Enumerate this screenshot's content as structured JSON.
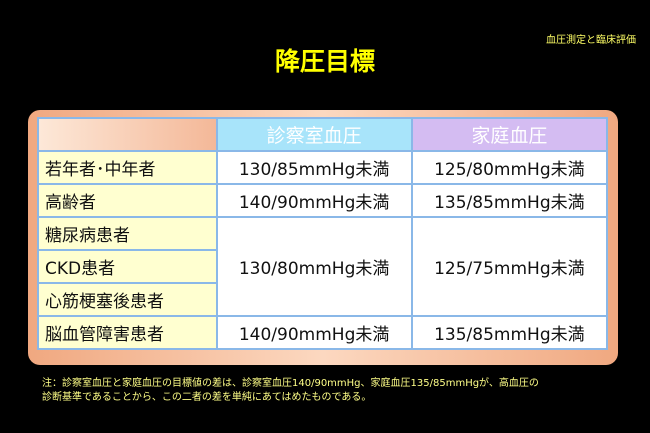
{
  "header": {
    "corner_label": "血圧測定と臨床評価",
    "title": "降圧目標"
  },
  "table": {
    "columns": [
      "",
      "診察室血圧",
      "家庭血圧"
    ],
    "rows": [
      {
        "label": "若年者･中年者",
        "office": "130/85mmHg未満",
        "home": "125/80mmHg未満"
      },
      {
        "label": "高齢者",
        "office": "140/90mmHg未満",
        "home": "135/85mmHg未満"
      },
      {
        "label": "糖尿病患者"
      },
      {
        "label": "CKD患者"
      },
      {
        "label": "心筋梗塞後患者"
      },
      {
        "label": "脳血管障害患者",
        "office": "140/90mmHg未満",
        "home": "135/85mmHg未満"
      }
    ],
    "merged": {
      "office": "130/80mmHg未満",
      "home": "125/75mmHg未満"
    }
  },
  "note": {
    "line1": "注：診察室血圧と家庭血圧の目標値の差は、診察室血圧140/90mmHg、家庭血圧135/85mmHgが、高血圧の",
    "line2": "診断基準であることから、この二者の差を単純にあてはめたものである。"
  },
  "colors": {
    "background": "#000000",
    "title": "#ffff00",
    "office_header": "#a8e4fa",
    "home_header": "#d4bcf2",
    "label_cell": "#ffffd0"
  }
}
